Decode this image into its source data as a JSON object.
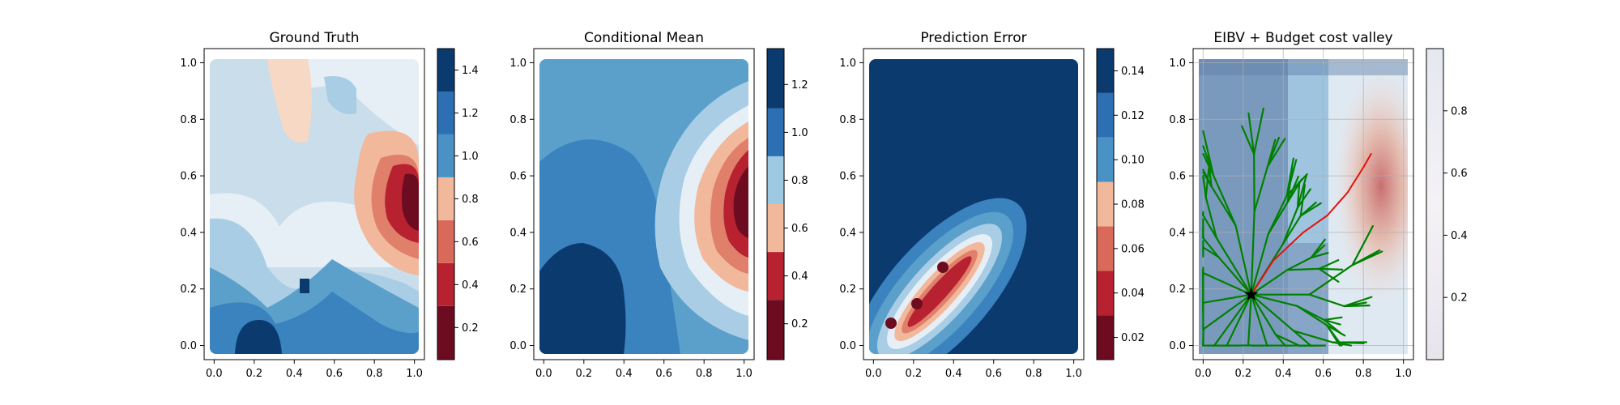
{
  "chart_data": [
    {
      "type": "heatmap",
      "title": "Ground Truth",
      "xlabel": "",
      "ylabel": "",
      "xlim": [
        -0.05,
        1.05
      ],
      "ylim": [
        -0.05,
        1.05
      ],
      "x_ticks": [
        "0.0",
        "0.2",
        "0.4",
        "0.6",
        "0.8",
        "1.0"
      ],
      "y_ticks": [
        "0.0",
        "0.2",
        "0.4",
        "0.6",
        "0.8",
        "1.0"
      ],
      "colormap": "RdBu",
      "colorbar": {
        "range": [
          0.05,
          1.5
        ],
        "ticks": [
          "0.2",
          "0.4",
          "0.6",
          "0.8",
          "1.0",
          "1.2",
          "1.4"
        ]
      },
      "features": [
        {
          "desc": "high region lower-left",
          "x": 0.25,
          "y": 0.05,
          "value": 1.4
        },
        {
          "desc": "low region right",
          "x": 0.98,
          "y": 0.55,
          "value": 0.1
        },
        {
          "desc": "low region top",
          "x": 0.4,
          "y": 0.9,
          "value": 0.7
        }
      ]
    },
    {
      "type": "heatmap",
      "title": "Conditional Mean",
      "xlabel": "",
      "ylabel": "",
      "xlim": [
        -0.05,
        1.05
      ],
      "ylim": [
        -0.05,
        1.05
      ],
      "x_ticks": [
        "0.0",
        "0.2",
        "0.4",
        "0.6",
        "0.8",
        "1.0"
      ],
      "y_ticks": [
        "0.0",
        "0.2",
        "0.4",
        "0.6",
        "0.8",
        "1.0"
      ],
      "colormap": "RdBu",
      "colorbar": {
        "range": [
          0.05,
          1.35
        ],
        "ticks": [
          "0.2",
          "0.4",
          "0.6",
          "0.8",
          "1.0",
          "1.2"
        ]
      },
      "features": [
        {
          "desc": "high region lower-left",
          "x": 0.15,
          "y": 0.1,
          "value": 1.3
        },
        {
          "desc": "low region right",
          "x": 1.0,
          "y": 0.52,
          "value": 0.1
        }
      ]
    },
    {
      "type": "heatmap",
      "title": "Prediction Error",
      "xlabel": "",
      "ylabel": "",
      "xlim": [
        -0.05,
        1.05
      ],
      "ylim": [
        -0.05,
        1.05
      ],
      "x_ticks": [
        "0.0",
        "0.2",
        "0.4",
        "0.6",
        "0.8",
        "1.0"
      ],
      "y_ticks": [
        "0.0",
        "0.2",
        "0.4",
        "0.6",
        "0.8",
        "1.0"
      ],
      "colormap": "RdBu",
      "colorbar": {
        "range": [
          0.01,
          0.15
        ],
        "ticks": [
          "0.02",
          "0.04",
          "0.06",
          "0.08",
          "0.10",
          "0.12",
          "0.14"
        ]
      },
      "features": [
        {
          "desc": "low error along path",
          "x": 0.12,
          "y": 0.08,
          "value": 0.015
        },
        {
          "desc": "low error along path",
          "x": 0.36,
          "y": 0.29,
          "value": 0.015
        },
        {
          "desc": "background",
          "x": 0.8,
          "y": 0.8,
          "value": 0.145
        }
      ]
    },
    {
      "type": "heatmap",
      "title": "EIBV + Budget cost valley",
      "xlabel": "",
      "ylabel": "",
      "xlim": [
        -0.05,
        1.05
      ],
      "ylim": [
        -0.05,
        1.05
      ],
      "x_ticks": [
        "0.0",
        "0.2",
        "0.4",
        "0.6",
        "0.8",
        "1.0"
      ],
      "y_ticks": [
        "0.0",
        "0.2",
        "0.4",
        "0.6",
        "0.8",
        "1.0"
      ],
      "colormap": "RdBu",
      "colorbar": {
        "range": [
          0.0,
          1.0
        ],
        "ticks": [
          "0.2",
          "0.4",
          "0.6",
          "0.8"
        ]
      },
      "grid": true,
      "current_location": {
        "x": 0.24,
        "y": 0.18,
        "marker": "star"
      },
      "best_path": [
        [
          0.24,
          0.18
        ],
        [
          0.35,
          0.3
        ],
        [
          0.5,
          0.4
        ],
        [
          0.62,
          0.46
        ],
        [
          0.72,
          0.54
        ],
        [
          0.8,
          0.63
        ],
        [
          0.84,
          0.68
        ]
      ],
      "colors": {
        "tree": "#008000",
        "best_path": "#e0140e",
        "marker": "#000000"
      }
    }
  ]
}
